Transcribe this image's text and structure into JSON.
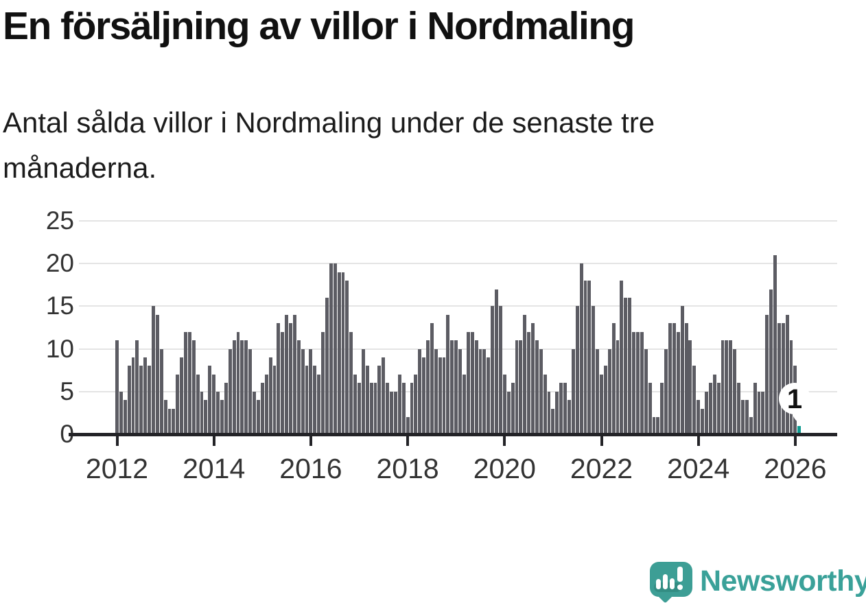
{
  "header": {
    "title": "En försäljning av villor i Nordmaling",
    "subtitle": "Antal sålda villor i Nordmaling under de senaste tre månaderna."
  },
  "chart_data": {
    "type": "bar",
    "title": "En försäljning av villor i Nordmaling",
    "subtitle": "Antal sålda villor i Nordmaling under de senaste tre månaderna.",
    "start_month": "2012-01",
    "end_month": "2026-02",
    "x_ticks": [
      "2012",
      "2014",
      "2016",
      "2018",
      "2020",
      "2022",
      "2024",
      "2026"
    ],
    "y_ticks": [
      0,
      5,
      10,
      15,
      20,
      25
    ],
    "ylim": [
      0,
      25
    ],
    "grid": true,
    "legend": "none",
    "values": [
      11,
      5,
      4,
      8,
      9,
      11,
      8,
      9,
      8,
      15,
      14,
      10,
      4,
      3,
      3,
      7,
      9,
      12,
      12,
      11,
      7,
      5,
      4,
      8,
      7,
      5,
      4,
      6,
      10,
      11,
      12,
      11,
      11,
      10,
      5,
      4,
      6,
      7,
      9,
      8,
      13,
      12,
      14,
      13,
      14,
      11,
      10,
      8,
      10,
      8,
      7,
      12,
      16,
      20,
      20,
      19,
      19,
      18,
      12,
      7,
      6,
      10,
      8,
      6,
      6,
      8,
      9,
      6,
      5,
      5,
      7,
      6,
      2,
      6,
      7,
      10,
      9,
      11,
      13,
      10,
      9,
      9,
      14,
      11,
      11,
      10,
      7,
      12,
      12,
      11,
      10,
      10,
      9,
      15,
      17,
      15,
      7,
      5,
      6,
      11,
      11,
      14,
      12,
      13,
      11,
      10,
      7,
      5,
      3,
      5,
      6,
      6,
      4,
      10,
      15,
      20,
      18,
      18,
      15,
      10,
      7,
      8,
      10,
      13,
      11,
      18,
      16,
      16,
      12,
      12,
      12,
      10,
      6,
      2,
      2,
      6,
      10,
      13,
      13,
      12,
      15,
      13,
      11,
      8,
      4,
      3,
      5,
      6,
      7,
      6,
      11,
      11,
      11,
      10,
      6,
      4,
      4,
      2,
      6,
      5,
      5,
      14,
      17,
      21,
      13,
      13,
      14,
      11,
      8,
      1
    ],
    "highlight_last": true,
    "last_value_label": "1",
    "bar_color": "#5c5c63",
    "highlight_color": "#0f9a90",
    "gridline_color": "#e4e4e4",
    "axis_color": "#232327",
    "label_color": "#333333"
  },
  "annotation": {
    "label": "1"
  },
  "logo": {
    "text": "Newsworthy",
    "color": "#3aa199",
    "icon": "newsworthy-speech-bubble-bar-chart-icon"
  }
}
